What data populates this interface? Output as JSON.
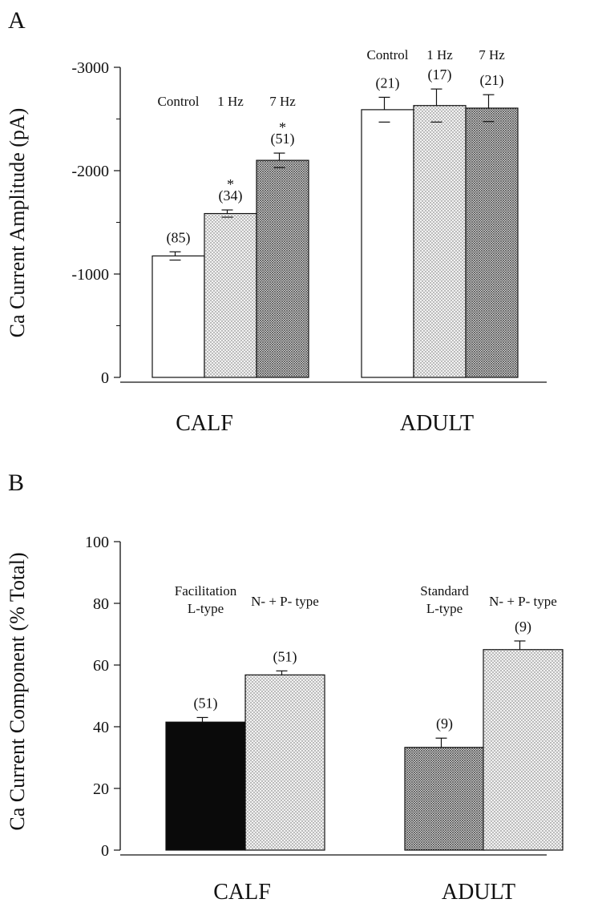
{
  "chart_data": [
    {
      "panel": "A",
      "type": "bar",
      "ylabel": "Ca Current Amplitude (pA)",
      "ylim": [
        0,
        -3000
      ],
      "yticks": [
        0,
        -1000,
        -2000,
        -3000
      ],
      "yticks_labels": [
        "0",
        "-1000",
        "-2000",
        "-3000"
      ],
      "groups": [
        {
          "name": "CALF",
          "bars": [
            {
              "label": "Control",
              "value": -1175,
              "error": 40,
              "n": "(85)",
              "sig": "",
              "fill": "white"
            },
            {
              "label": "1 Hz",
              "value": -1585,
              "error": 35,
              "n": "(34)",
              "sig": "*",
              "fill": "light-dots"
            },
            {
              "label": "7 Hz",
              "value": -2100,
              "error": 70,
              "n": "(51)",
              "sig": "*",
              "fill": "dark-dots"
            }
          ]
        },
        {
          "name": "ADULT",
          "bars": [
            {
              "label": "Control",
              "value": -2590,
              "error": 120,
              "n": "(21)",
              "sig": "",
              "fill": "white"
            },
            {
              "label": "1 Hz",
              "value": -2630,
              "error": 160,
              "n": "(17)",
              "sig": "",
              "fill": "light-dots"
            },
            {
              "label": "7 Hz",
              "value": -2605,
              "error": 130,
              "n": "(21)",
              "sig": "",
              "fill": "dark-dots"
            }
          ]
        }
      ]
    },
    {
      "panel": "B",
      "type": "bar",
      "ylabel": "Ca Current Component (% Total)",
      "ylim": [
        0,
        100
      ],
      "yticks": [
        0,
        20,
        40,
        60,
        80,
        100
      ],
      "yticks_labels": [
        "0",
        "20",
        "40",
        "60",
        "80",
        "100"
      ],
      "groups": [
        {
          "name": "CALF",
          "bars": [
            {
              "label": [
                "Facilitation",
                "L-type"
              ],
              "value": 41.5,
              "error": 1.5,
              "n": "(51)",
              "fill": "black"
            },
            {
              "label": [
                "N- + P- type"
              ],
              "value": 56.8,
              "error": 1.3,
              "n": "(51)",
              "fill": "light-dots"
            }
          ]
        },
        {
          "name": "ADULT",
          "bars": [
            {
              "label": [
                "Standard",
                "L-type"
              ],
              "value": 33.3,
              "error": 3.0,
              "n": "(9)",
              "fill": "dark-dots"
            },
            {
              "label": [
                "N- + P- type"
              ],
              "value": 65.0,
              "error": 2.8,
              "n": "(9)",
              "fill": "light-dots"
            }
          ]
        }
      ]
    }
  ]
}
